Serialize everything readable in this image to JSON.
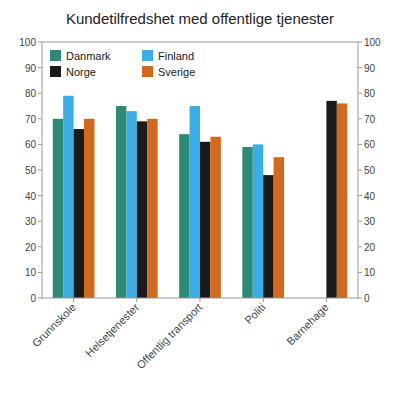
{
  "chart_data": {
    "type": "bar",
    "title": "Kundetilfredshet med offentlige tjenester",
    "categories": [
      "Grunnskole",
      "Helsetjenester",
      "Offentlig transport",
      "Politi",
      "Barnehage"
    ],
    "series": [
      {
        "name": "Danmark",
        "color": "#2d8b75",
        "values": [
          70,
          75,
          64,
          59,
          null
        ]
      },
      {
        "name": "Finland",
        "color": "#3baee8",
        "values": [
          79,
          73,
          75,
          60,
          null
        ]
      },
      {
        "name": "Norge",
        "color": "#1a1a1a",
        "values": [
          66,
          69,
          61,
          48,
          77
        ]
      },
      {
        "name": "Sverige",
        "color": "#d2691e",
        "values": [
          70,
          70,
          63,
          55,
          76
        ]
      }
    ],
    "ylim": [
      0,
      100
    ],
    "yticks": [
      0,
      10,
      20,
      30,
      40,
      50,
      60,
      70,
      80,
      90,
      100
    ],
    "y2lim": [
      0,
      100
    ],
    "y2ticks": [
      0,
      10,
      20,
      30,
      40,
      50,
      60,
      70,
      80,
      90,
      100
    ],
    "grid": false,
    "legend": "upper left"
  }
}
